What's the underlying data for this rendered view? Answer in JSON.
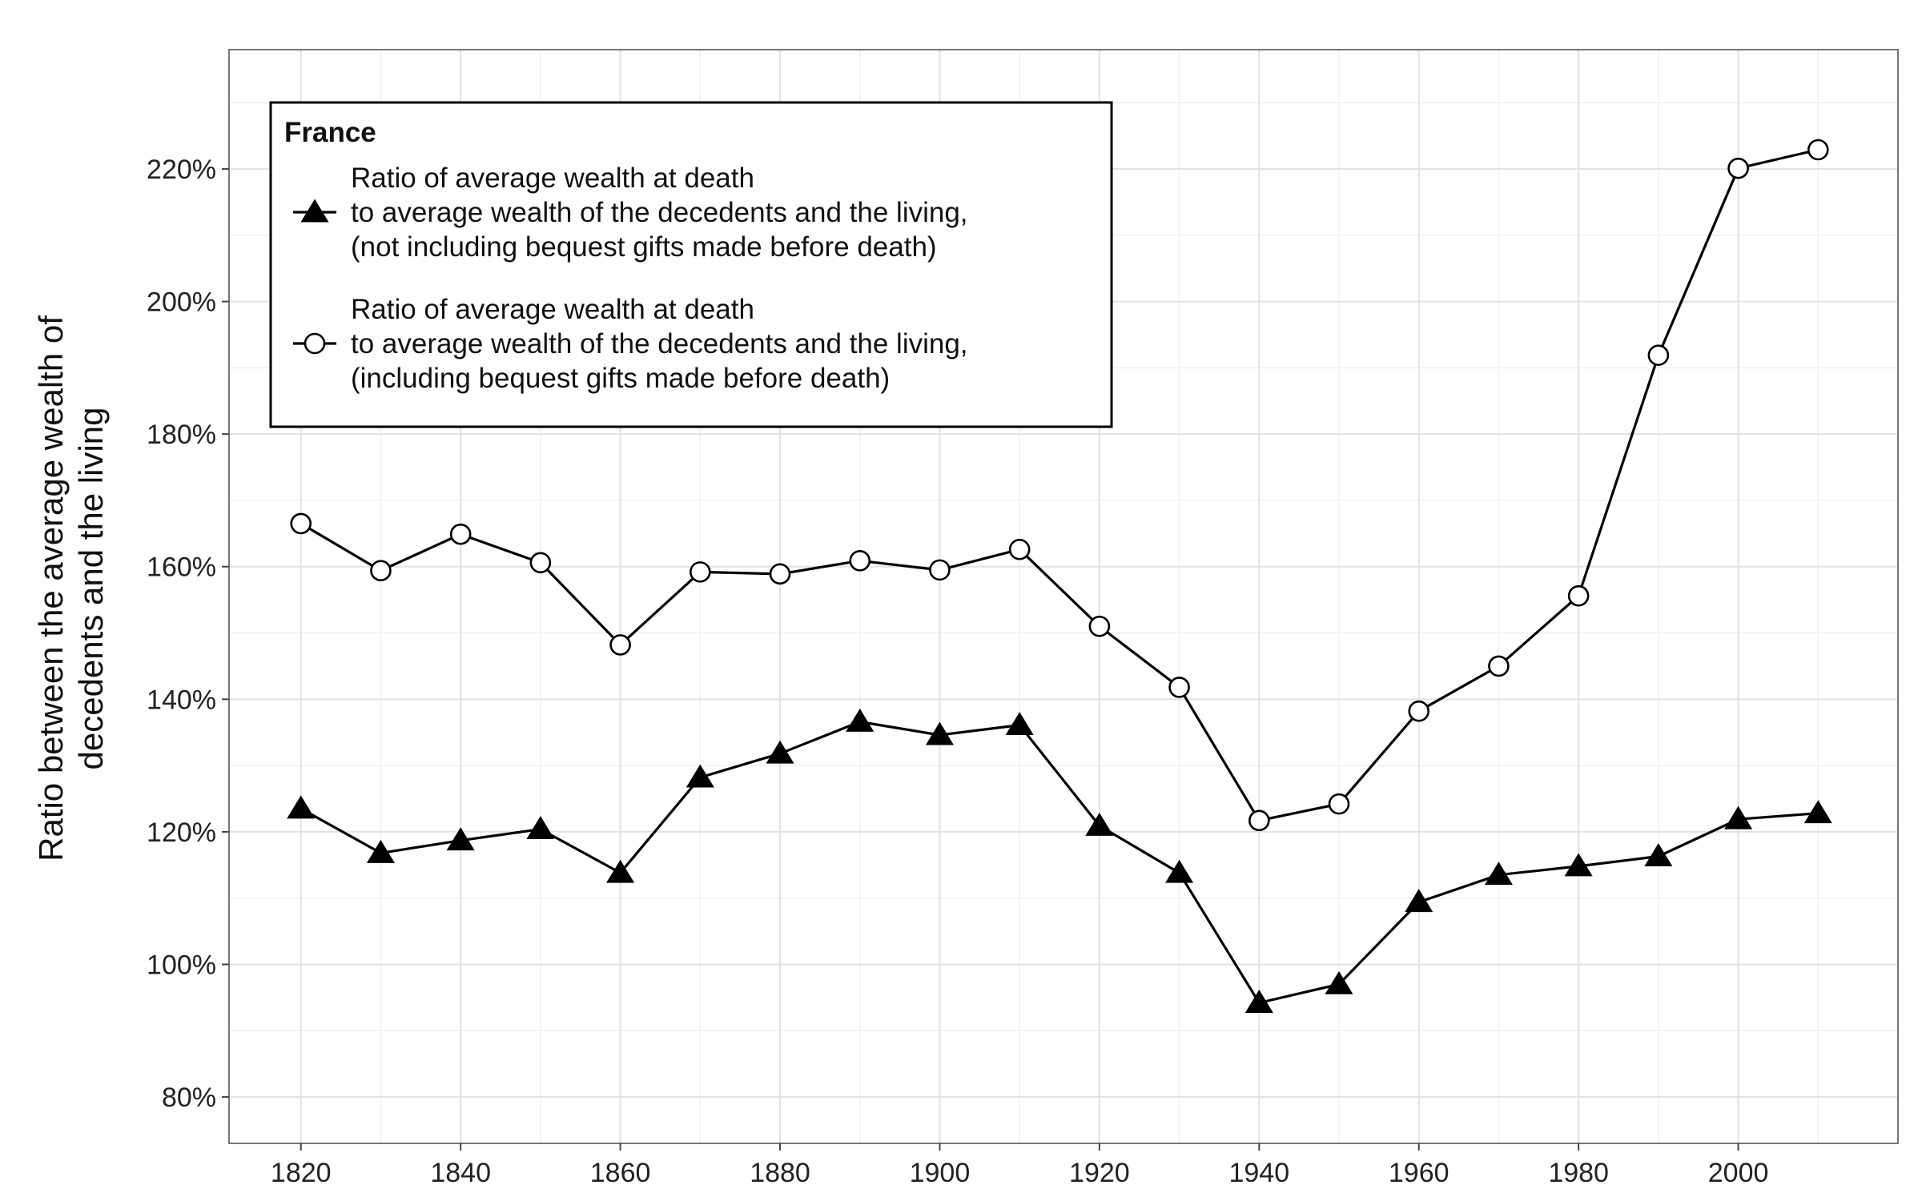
{
  "chart_data": {
    "type": "line",
    "title": "",
    "ylabel_lines": [
      "Ratio between the average wealth of",
      "decedents and the living"
    ],
    "xlabel": "",
    "x": [
      1820,
      1830,
      1840,
      1850,
      1860,
      1870,
      1880,
      1890,
      1900,
      1910,
      1920,
      1930,
      1940,
      1950,
      1960,
      1970,
      1980,
      1990,
      2000,
      2010
    ],
    "xlim": [
      1811,
      2020
    ],
    "ylim": [
      73,
      238
    ],
    "x_ticks": [
      1820,
      1840,
      1860,
      1880,
      1900,
      1920,
      1940,
      1960,
      1980,
      2000
    ],
    "x_tick_labels": [
      "1820",
      "1840",
      "1860",
      "1880",
      "1900",
      "1920",
      "1940",
      "1960",
      "1980",
      "2000"
    ],
    "y_ticks": [
      80,
      100,
      120,
      140,
      160,
      180,
      200,
      220
    ],
    "y_tick_labels": [
      "80%",
      "100%",
      "120%",
      "140%",
      "160%",
      "180%",
      "200%",
      "220%"
    ],
    "grid": true,
    "legend_position": "top-left",
    "legend": {
      "title": "France",
      "entries": [
        {
          "series_index": 0,
          "lines": [
            "Ratio of average wealth at death",
            "to average wealth of the decedents and the living,",
            "(not including bequest gifts made before death)"
          ]
        },
        {
          "series_index": 1,
          "lines": [
            "Ratio of average wealth at death",
            "to average wealth of the decedents and the living,",
            "(including bequest gifts made before death)"
          ]
        }
      ]
    },
    "series": [
      {
        "marker": "filled-triangle",
        "color": "#000000",
        "values": [
          123.5,
          116.8,
          118.7,
          120.4,
          113.8,
          128.2,
          131.8,
          136.6,
          134.6,
          136.1,
          120.9,
          113.8,
          94.2,
          97.0,
          109.4,
          113.5,
          114.8,
          116.3,
          121.9,
          122.8
        ]
      },
      {
        "marker": "open-circle",
        "color": "#000000",
        "values": [
          166.5,
          159.4,
          164.9,
          160.6,
          148.2,
          159.2,
          158.9,
          160.9,
          159.5,
          162.6,
          151.0,
          141.8,
          121.7,
          124.2,
          138.2,
          145.0,
          155.6,
          191.9,
          220.1,
          222.9
        ]
      }
    ]
  }
}
